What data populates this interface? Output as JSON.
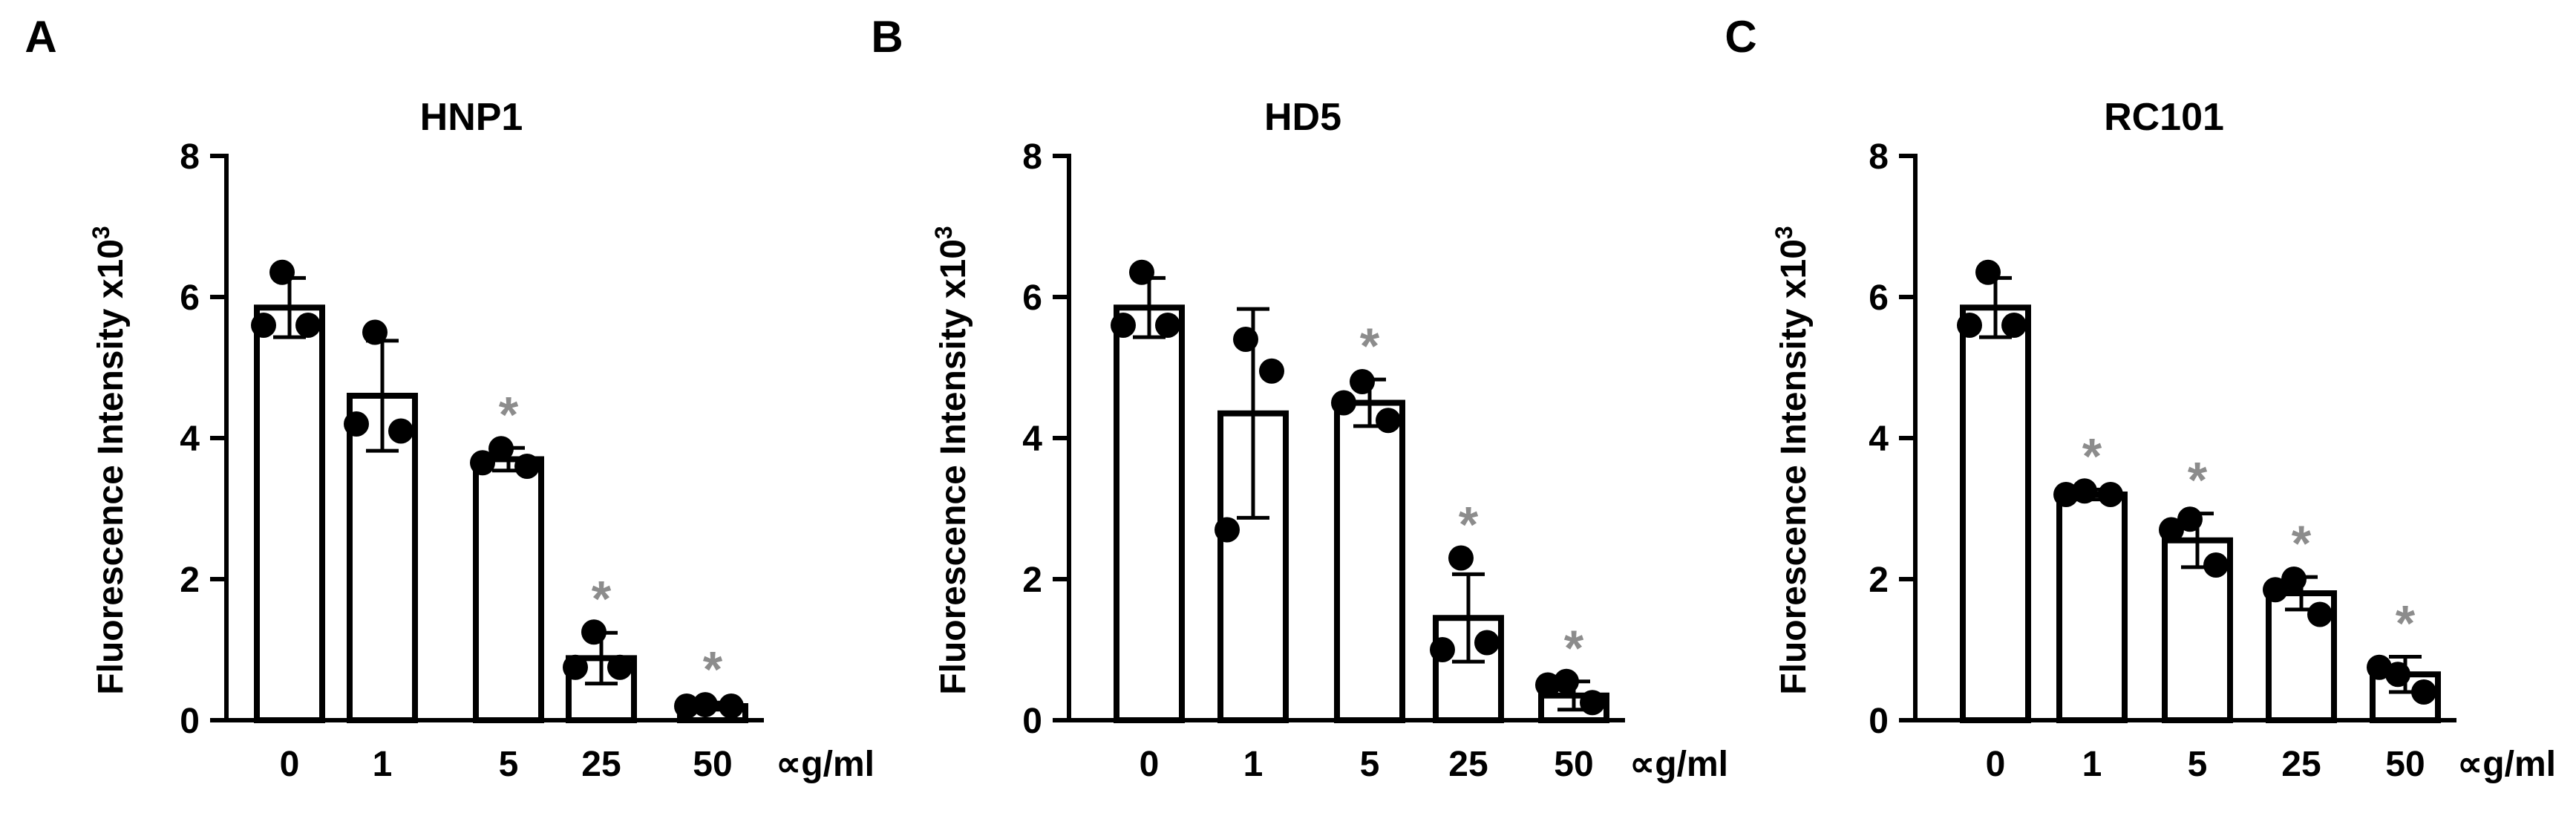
{
  "figure": {
    "unit_label": "∝g/ml",
    "significance_symbol": "*",
    "colors": {
      "bar_fill": "#ffffff",
      "stroke": "#000000",
      "point": "#000000",
      "star": "#8c8c8c"
    }
  },
  "chart_data": [
    {
      "type": "bar",
      "panel_label": "A",
      "title": "HNP1",
      "ylabel": "Fluorescence Intensity x10",
      "ylabel_superscript": "3",
      "ylim": [
        0,
        8
      ],
      "yticks": [
        0,
        2,
        4,
        6,
        8
      ],
      "categories": [
        "0",
        "1",
        "5",
        "25",
        "50"
      ],
      "values": [
        5.85,
        4.6,
        3.7,
        0.88,
        0.2
      ],
      "error": [
        0.42,
        0.78,
        0.16,
        0.36,
        0.05
      ],
      "points": [
        [
          6.35,
          5.6,
          5.6
        ],
        [
          5.5,
          4.1,
          4.2
        ],
        [
          3.85,
          3.6,
          3.65
        ],
        [
          1.25,
          0.75,
          0.75
        ],
        [
          0.22,
          0.2,
          0.2
        ]
      ],
      "significant": [
        false,
        false,
        true,
        true,
        true
      ]
    },
    {
      "type": "bar",
      "panel_label": "B",
      "title": "HD5",
      "ylabel": "Fluorescence Intensity x10",
      "ylabel_superscript": "3",
      "ylim": [
        0,
        8
      ],
      "yticks": [
        0,
        2,
        4,
        6,
        8
      ],
      "categories": [
        "0",
        "1",
        "5",
        "25",
        "50"
      ],
      "values": [
        5.85,
        4.35,
        4.5,
        1.45,
        0.35
      ],
      "error": [
        0.42,
        1.48,
        0.33,
        0.62,
        0.2
      ],
      "points": [
        [
          6.35,
          5.6,
          5.6
        ],
        [
          5.4,
          4.95,
          2.7
        ],
        [
          4.8,
          4.25,
          4.5
        ],
        [
          2.3,
          1.1,
          1.0
        ],
        [
          0.55,
          0.25,
          0.5
        ]
      ],
      "significant": [
        false,
        false,
        true,
        true,
        true
      ]
    },
    {
      "type": "bar",
      "panel_label": "C",
      "title": "RC101",
      "ylabel": "Fluorescence Intensity x10",
      "ylabel_superscript": "3",
      "ylim": [
        0,
        8
      ],
      "yticks": [
        0,
        2,
        4,
        6,
        8
      ],
      "categories": [
        "0",
        "1",
        "5",
        "25",
        "50"
      ],
      "values": [
        5.85,
        3.2,
        2.55,
        1.8,
        0.65
      ],
      "error": [
        0.42,
        0.07,
        0.38,
        0.23,
        0.25
      ],
      "points": [
        [
          6.35,
          5.6,
          5.6
        ],
        [
          3.25,
          3.2,
          3.2
        ],
        [
          2.85,
          2.2,
          2.7
        ],
        [
          2.0,
          1.5,
          1.85
        ],
        [
          0.65,
          0.4,
          0.75
        ]
      ],
      "significant": [
        false,
        true,
        true,
        true,
        true
      ]
    }
  ]
}
